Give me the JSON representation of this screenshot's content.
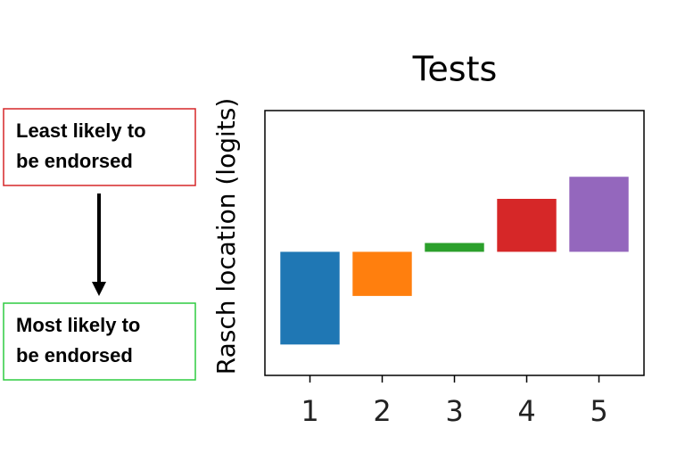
{
  "chart_data": {
    "type": "floating_bar",
    "title": "Tests",
    "y_label": "Rasch location (logits)",
    "categories": [
      "1",
      "2",
      "3",
      "4",
      "5"
    ],
    "values": [
      -2.1,
      -1.0,
      0.2,
      1.2,
      1.7
    ],
    "colors": [
      "#1f77b4",
      "#ff7f0e",
      "#2ca02c",
      "#d62728",
      "#9467bd"
    ],
    "ylim": [
      -2.8,
      3.2
    ],
    "grid": false,
    "annotations": [
      {
        "lines": [
          "Least likely to",
          "be endorsed"
        ],
        "color": "#d62728"
      },
      {
        "lines": [
          "Most likely to",
          "be endorsed"
        ],
        "color": "#2ecc40"
      }
    ]
  }
}
